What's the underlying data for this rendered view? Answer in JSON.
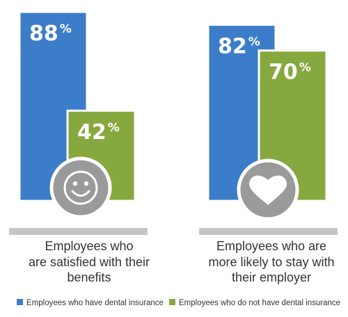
{
  "chart_data": {
    "type": "bar",
    "value_suffix": "%",
    "ylim": [
      0,
      100
    ],
    "grid": false,
    "legend_position": "bottom",
    "colors": {
      "with_insurance": "#3b7dc8",
      "without_insurance": "#86a83e",
      "baseline": "#c6c6c6",
      "icon": "#9a9a9a"
    },
    "groups": [
      {
        "label_lines": [
          "Employees who",
          "are satisfied with their",
          "benefits"
        ],
        "icon": "smiley-face-icon"
      },
      {
        "label_lines": [
          "Employees who are",
          "more likely to stay with",
          "their employer"
        ],
        "icon": "heart-icon"
      }
    ],
    "series": [
      {
        "name": "Employees who have dental insurance",
        "key": "with_insurance",
        "values": [
          88,
          82
        ]
      },
      {
        "name": "Employees who do not have dental insurance",
        "key": "without_insurance",
        "values": [
          42,
          70
        ]
      }
    ]
  }
}
